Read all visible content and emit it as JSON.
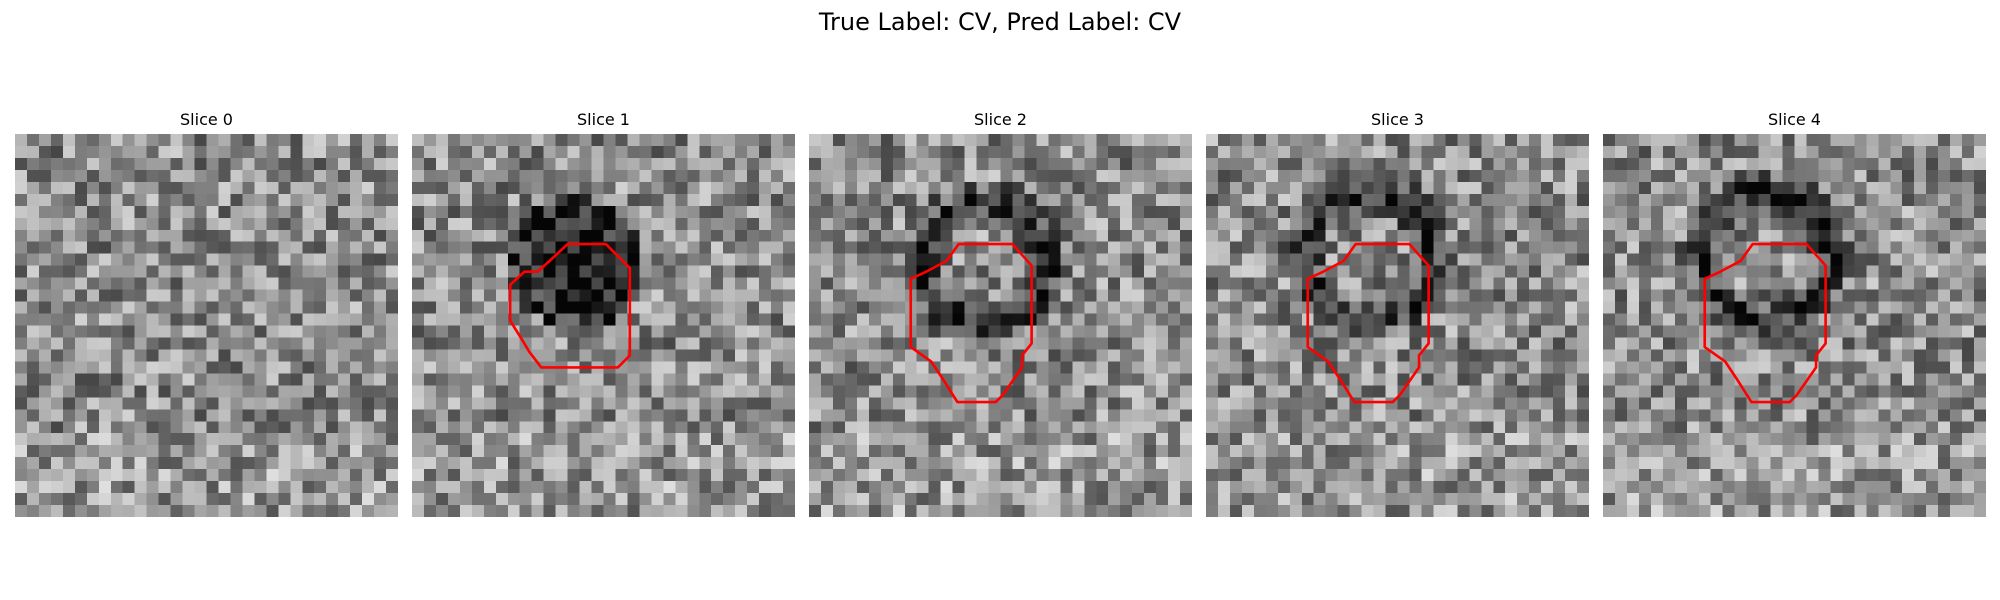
{
  "figure": {
    "title": "True Label: CV, Pred Label: CV"
  },
  "slices": [
    {
      "title": "Slice 0",
      "dark_region": null,
      "contour": null,
      "contour_color": "#ff0000"
    },
    {
      "title": "Slice 1",
      "dark_region": {
        "cx": 13.6,
        "cy": 10.8,
        "r": 5.6,
        "strength": 0.55
      },
      "contour": "filled",
      "contour_color": "#ff0000"
    },
    {
      "title": "Slice 2",
      "dark_region": {
        "cx": 14.6,
        "cy": 10.9,
        "r": 6.3,
        "strength": 0.45,
        "ring": true
      },
      "contour": "ring",
      "contour_color": "#ff0000"
    },
    {
      "title": "Slice 3",
      "dark_region": {
        "cx": 13.6,
        "cy": 10.2,
        "r": 6.6,
        "strength": 0.4,
        "ring": true
      },
      "contour": "ring",
      "contour_color": "#ff0000"
    },
    {
      "title": "Slice 4",
      "dark_region": {
        "cx": 13.6,
        "cy": 10.2,
        "r": 6.6,
        "strength": 0.4,
        "ring": true
      },
      "contour": "ring",
      "contour_color": "#ff0000"
    }
  ]
}
